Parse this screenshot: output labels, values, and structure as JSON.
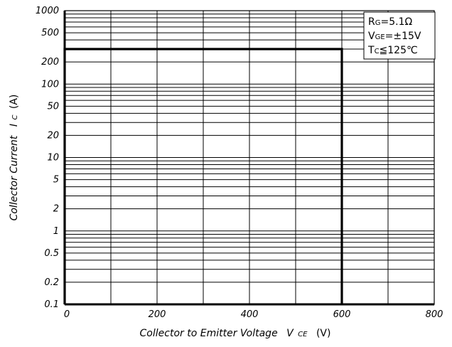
{
  "chart_data": {
    "type": "line",
    "xlabel": {
      "main": "Collector to Emitter Voltage",
      "symbol": "V",
      "symbol_sub": "CE",
      "unit": "(V)"
    },
    "ylabel": {
      "main": "Collector Current",
      "symbol": "I",
      "symbol_sub": "C",
      "unit": "(A)"
    },
    "xlim": [
      0,
      800
    ],
    "ylim": [
      0.1,
      1000
    ],
    "xscale": "linear",
    "yscale": "log",
    "grid": true,
    "x_ticks": [
      0,
      200,
      400,
      600,
      800
    ],
    "x_tick_labels": [
      "0",
      "200",
      "400",
      "600",
      "800"
    ],
    "y_ticks": [
      0.1,
      0.2,
      0.5,
      1,
      2,
      5,
      10,
      20,
      50,
      100,
      200,
      500,
      1000
    ],
    "y_tick_labels": [
      "0.1",
      "0.2",
      "0.5",
      "1",
      "2",
      "5",
      "10",
      "20",
      "50",
      "100",
      "200",
      "500",
      "1000"
    ],
    "series": [
      {
        "x": [
          0,
          0,
          600,
          600
        ],
        "y": [
          0.1,
          300,
          300,
          0.1
        ]
      }
    ],
    "annotations": [
      {
        "main": "R",
        "sub": "G",
        "rest": "=5.1Ω"
      },
      {
        "main": "V",
        "sub": "GE",
        "rest": "=±15V"
      },
      {
        "main": "T",
        "sub": "C",
        "rest": "≦125℃"
      }
    ],
    "annotation_placement": "top-right"
  }
}
